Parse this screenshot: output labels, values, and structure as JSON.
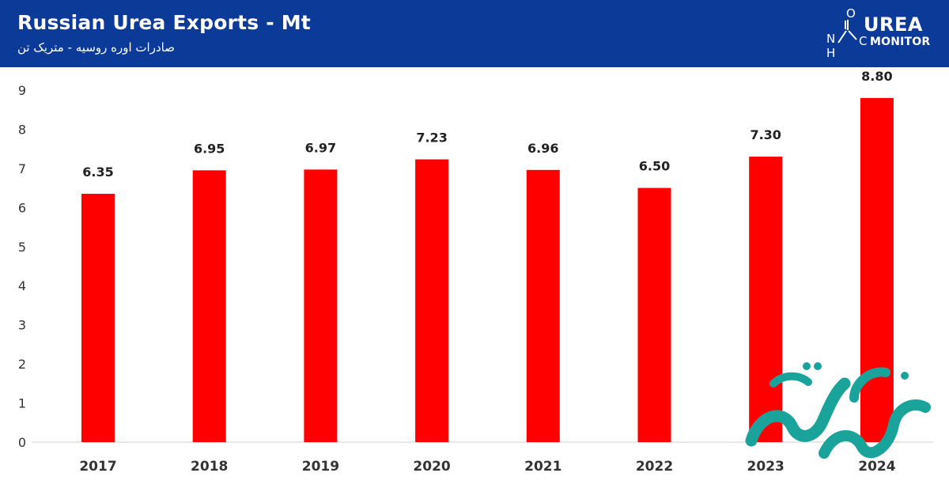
{
  "header": {
    "title": "Russian Urea Exports - Mt",
    "subtitle": "صادرات اوره روسیه - متریک تن",
    "logo_line1": "UREA",
    "logo_line2": "MONITOR",
    "logo_formula_letters": [
      "O",
      "N",
      "H",
      "C"
    ]
  },
  "colors": {
    "header_bg": "#0c3a98",
    "bar": "#ff0000",
    "watermark": "#1aa39a"
  },
  "watermark_text": "صفحه اقتصاد",
  "chart_data": {
    "type": "bar",
    "categories": [
      "2017",
      "2018",
      "2019",
      "2020",
      "2021",
      "2022",
      "2023",
      "2024"
    ],
    "values": [
      6.35,
      6.95,
      6.97,
      7.23,
      6.96,
      6.5,
      7.3,
      8.8
    ],
    "value_labels": [
      "6.35",
      "6.95",
      "6.97",
      "7.23",
      "6.96",
      "6.50",
      "7.30",
      "8.80"
    ],
    "yticks": [
      "0",
      "1",
      "2",
      "3",
      "4",
      "5",
      "6",
      "7",
      "8",
      "9"
    ],
    "ylim": [
      0,
      9
    ],
    "grid": false,
    "legend": "none"
  }
}
